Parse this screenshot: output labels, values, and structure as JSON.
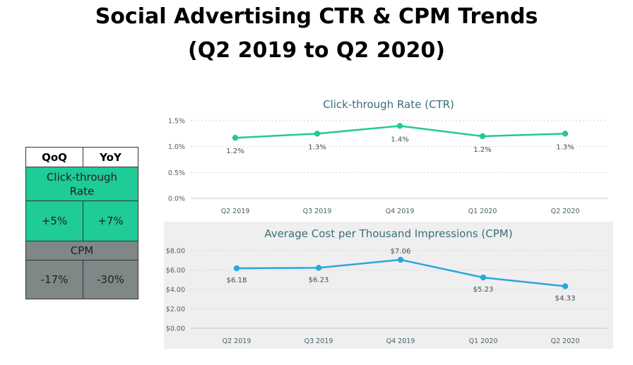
{
  "title_line1": "Social Advertising CTR & CPM Trends",
  "title_line2": "(Q2 2019 to Q2 2020)",
  "summary_table": {
    "col_qoq": "QoQ",
    "col_yoy": "YoY",
    "ctr_label": "Click-through Rate",
    "ctr_qoq": "+5%",
    "ctr_yoy": "+7%",
    "cpm_label": "CPM",
    "cpm_qoq": "-17%",
    "cpm_yoy": "-30%",
    "colors": {
      "ctr": "#1fcb96",
      "cpm": "#7f8787"
    }
  },
  "chart_data": [
    {
      "type": "line",
      "title": "Click-through Rate (CTR)",
      "categories": [
        "Q2 2019",
        "Q3 2019",
        "Q4 2019",
        "Q1 2020",
        "Q2 2020"
      ],
      "values": [
        1.17,
        1.25,
        1.4,
        1.2,
        1.25
      ],
      "data_labels": [
        "1.2%",
        "1.3%",
        "1.4%",
        "1.2%",
        "1.3%"
      ],
      "y_ticks": [
        0,
        0.5,
        1.0,
        1.5
      ],
      "y_tick_labels": [
        "0.0%",
        "0.5%",
        "1.0%",
        "1.5%"
      ],
      "ylim": [
        0,
        1.5
      ],
      "grid": true,
      "color": "#22c999"
    },
    {
      "type": "line",
      "title": "Average Cost per Thousand Impressions (CPM)",
      "categories": [
        "Q2 2019",
        "Q3 2019",
        "Q4 2019",
        "Q1 2020",
        "Q2 2020"
      ],
      "values": [
        6.18,
        6.23,
        7.06,
        5.23,
        4.33
      ],
      "data_labels": [
        "$6.18",
        "$6.23",
        "$7.06",
        "$5.23",
        "$4.33"
      ],
      "y_ticks": [
        0,
        2,
        4,
        6,
        8
      ],
      "y_tick_labels": [
        "$0.00",
        "$2.00",
        "$4.00",
        "$6.00",
        "$8.00"
      ],
      "ylim": [
        0,
        8
      ],
      "grid": true,
      "color": "#2aa6dd"
    }
  ]
}
